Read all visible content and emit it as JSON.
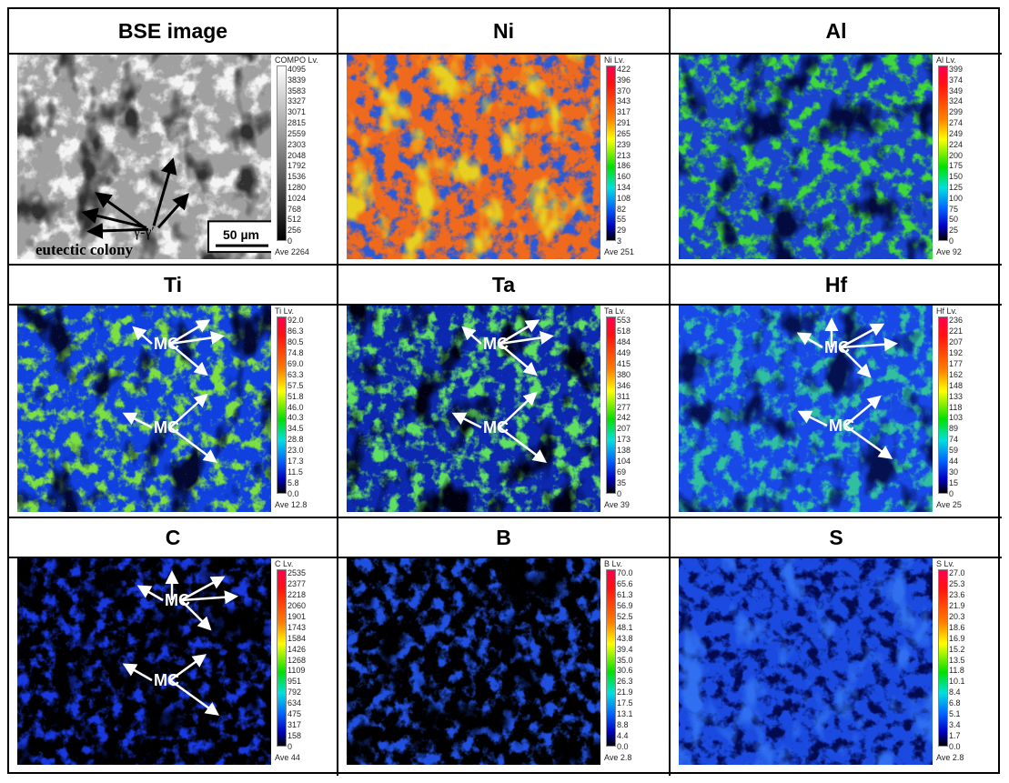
{
  "panels": [
    {
      "title": "BSE image",
      "lv": "COMPO Lv.",
      "scale": [
        "4095",
        "3839",
        "3583",
        "3327",
        "3071",
        "2815",
        "2559",
        "2303",
        "2048",
        "1792",
        "1536",
        "1280",
        "1024",
        "768",
        "512",
        "256",
        "0"
      ],
      "ave": "Ave 2264",
      "palette": "gray",
      "base": "#a0a0a0",
      "pattern": "#f4f4f4",
      "pattern2": "#303030",
      "scale_bar": "50 µm",
      "phase_label": "γ-γ′",
      "colony_label": "eutectic colony"
    },
    {
      "title": "Ni",
      "lv": "Ni Lv.",
      "scale": [
        "422",
        "396",
        "370",
        "343",
        "317",
        "291",
        "265",
        "239",
        "213",
        "186",
        "160",
        "134",
        "108",
        "82",
        "55",
        "29",
        "3"
      ],
      "ave": "Ave 251",
      "palette": "rainbow",
      "base": "#f06a1e",
      "pattern": "#2a5ad8",
      "pattern2": "#e8d020"
    },
    {
      "title": "Al",
      "lv": "Al Lv.",
      "scale": [
        "399",
        "374",
        "349",
        "324",
        "299",
        "274",
        "249",
        "224",
        "200",
        "175",
        "150",
        "125",
        "100",
        "75",
        "50",
        "25",
        "0"
      ],
      "ave": "Ave 92",
      "palette": "rainbow",
      "base": "#1a44d0",
      "pattern": "#3ed83a",
      "pattern2": "#020a40"
    },
    {
      "title": "Ti",
      "lv": "Ti Lv.",
      "scale": [
        "92.0",
        "86.3",
        "80.5",
        "74.8",
        "69.0",
        "63.3",
        "57.5",
        "51.8",
        "46.0",
        "40.3",
        "34.5",
        "28.8",
        "23.0",
        "17.3",
        "11.5",
        "5.8",
        "0.0"
      ],
      "ave": "Ave 12.8",
      "palette": "rainbow",
      "base": "#1040e0",
      "pattern": "#7ee040",
      "pattern2": "#020830",
      "annotation": "MC"
    },
    {
      "title": "Ta",
      "lv": "Ta Lv.",
      "scale": [
        "553",
        "518",
        "484",
        "449",
        "415",
        "380",
        "346",
        "311",
        "277",
        "242",
        "207",
        "173",
        "138",
        "104",
        "69",
        "35",
        "0"
      ],
      "ave": "Ave 39",
      "palette": "rainbow",
      "base": "#0c28b0",
      "pattern": "#60e060",
      "pattern2": "#000010",
      "annotation": "MC"
    },
    {
      "title": "Hf",
      "lv": "Hf Lv.",
      "scale": [
        "236",
        "221",
        "207",
        "192",
        "177",
        "162",
        "148",
        "133",
        "118",
        "103",
        "89",
        "74",
        "59",
        "44",
        "30",
        "15",
        "0"
      ],
      "ave": "Ave 25",
      "palette": "rainbow",
      "base": "#1848e8",
      "pattern": "#30c0a0",
      "pattern2": "#041050",
      "annotation": "MC"
    },
    {
      "title": "C",
      "lv": "C Lv.",
      "scale": [
        "2535",
        "2377",
        "2218",
        "2060",
        "1901",
        "1743",
        "1584",
        "1426",
        "1268",
        "1109",
        "951",
        "792",
        "634",
        "475",
        "317",
        "158",
        "0"
      ],
      "ave": "Ave 44",
      "palette": "rainbow",
      "base": "#000000",
      "pattern": "#1838e0",
      "pattern2": "#000000",
      "annotation": "MC"
    },
    {
      "title": "B",
      "lv": "B Lv.",
      "scale": [
        "70.0",
        "65.6",
        "61.3",
        "56.9",
        "52.5",
        "48.1",
        "43.8",
        "39.4",
        "35.0",
        "30.6",
        "26.3",
        "21.9",
        "17.5",
        "13.1",
        "8.8",
        "4.4",
        "0.0"
      ],
      "ave": "Ave 2.8",
      "palette": "rainbow",
      "base": "#000000",
      "pattern": "#2050e0",
      "pattern2": "#000000"
    },
    {
      "title": "S",
      "lv": "S Lv.",
      "scale": [
        "27.0",
        "25.3",
        "23.6",
        "21.9",
        "20.3",
        "18.6",
        "16.9",
        "15.2",
        "13.5",
        "11.8",
        "10.1",
        "8.4",
        "6.8",
        "5.1",
        "3.4",
        "1.7",
        "0.0"
      ],
      "ave": "Ave 2.8",
      "palette": "rainbow",
      "base": "#1a4ae0",
      "pattern": "#020a50",
      "pattern2": "#3070f0"
    }
  ]
}
